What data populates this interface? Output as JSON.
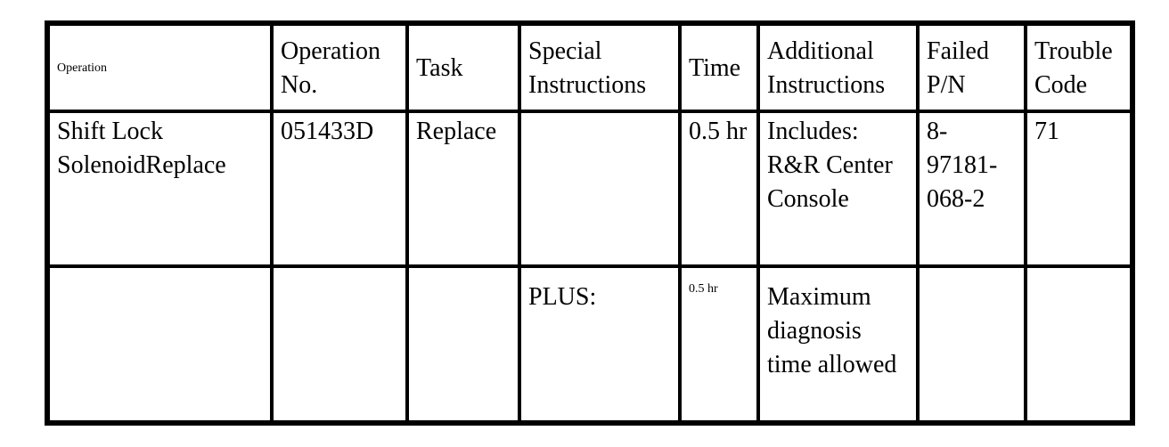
{
  "headers": [
    "Operation",
    "Operation No.",
    "Task",
    "Special Instructions",
    "Time",
    "Additional Instructions",
    "Failed P/N",
    "Trouble Code"
  ],
  "rows": [
    [
      "Shift Lock SolenoidReplace",
      "051433D",
      "Replace",
      "",
      "0.5 hr",
      "Includes: R&R Center Console",
      "8-97181-068-2",
      "71"
    ],
    [
      "",
      "",
      "",
      "PLUS:",
      "0.5 hr",
      "Maximum diagnosis time allowed",
      "",
      ""
    ]
  ]
}
